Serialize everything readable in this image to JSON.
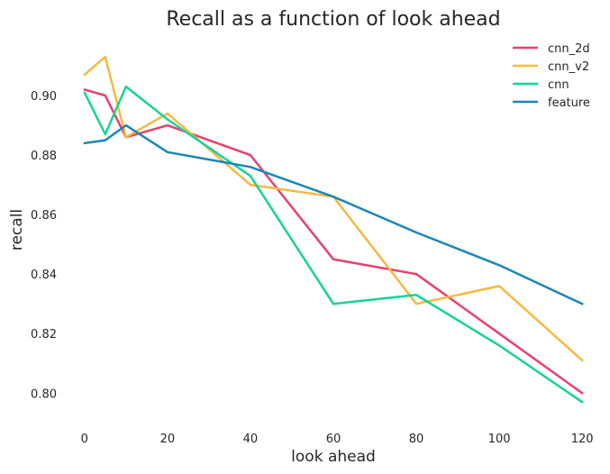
{
  "chart_data": {
    "type": "line",
    "title": "Recall as a function of look ahead",
    "xlabel": "look ahead",
    "ylabel": "recall",
    "xlim": [
      -3,
      123
    ],
    "ylim": [
      0.791,
      0.92
    ],
    "xticks": [
      0,
      20,
      40,
      60,
      80,
      100,
      120
    ],
    "xtick_labels": [
      "0",
      "20",
      "40",
      "60",
      "80",
      "100",
      "120"
    ],
    "yticks": [
      0.8,
      0.82,
      0.84,
      0.86,
      0.88,
      0.9
    ],
    "ytick_labels": [
      "0.80",
      "0.82",
      "0.84",
      "0.86",
      "0.88",
      "0.90"
    ],
    "grid": false,
    "legend_position": "top-right",
    "series": [
      {
        "name": "cnn_2d",
        "color": "#e8416b",
        "x": [
          0,
          5,
          10,
          20,
          40,
          60,
          80,
          100,
          120
        ],
        "y": [
          0.902,
          0.9,
          0.886,
          0.89,
          0.88,
          0.845,
          0.84,
          0.82,
          0.8
        ]
      },
      {
        "name": "cnn_v2",
        "color": "#f6b940",
        "x": [
          0,
          5,
          10,
          20,
          40,
          60,
          80,
          100,
          120
        ],
        "y": [
          0.907,
          0.913,
          0.886,
          0.894,
          0.87,
          0.866,
          0.83,
          0.836,
          0.811
        ]
      },
      {
        "name": "cnn",
        "color": "#14d496",
        "x": [
          0,
          5,
          10,
          20,
          40,
          60,
          80,
          100,
          120
        ],
        "y": [
          0.901,
          0.887,
          0.903,
          0.892,
          0.873,
          0.83,
          0.833,
          0.816,
          0.797
        ]
      },
      {
        "name": "feature",
        "color": "#1b87b6",
        "x": [
          0,
          5,
          10,
          20,
          40,
          60,
          80,
          100,
          120
        ],
        "y": [
          0.884,
          0.885,
          0.89,
          0.881,
          0.876,
          0.866,
          0.854,
          0.843,
          0.83
        ]
      }
    ]
  }
}
